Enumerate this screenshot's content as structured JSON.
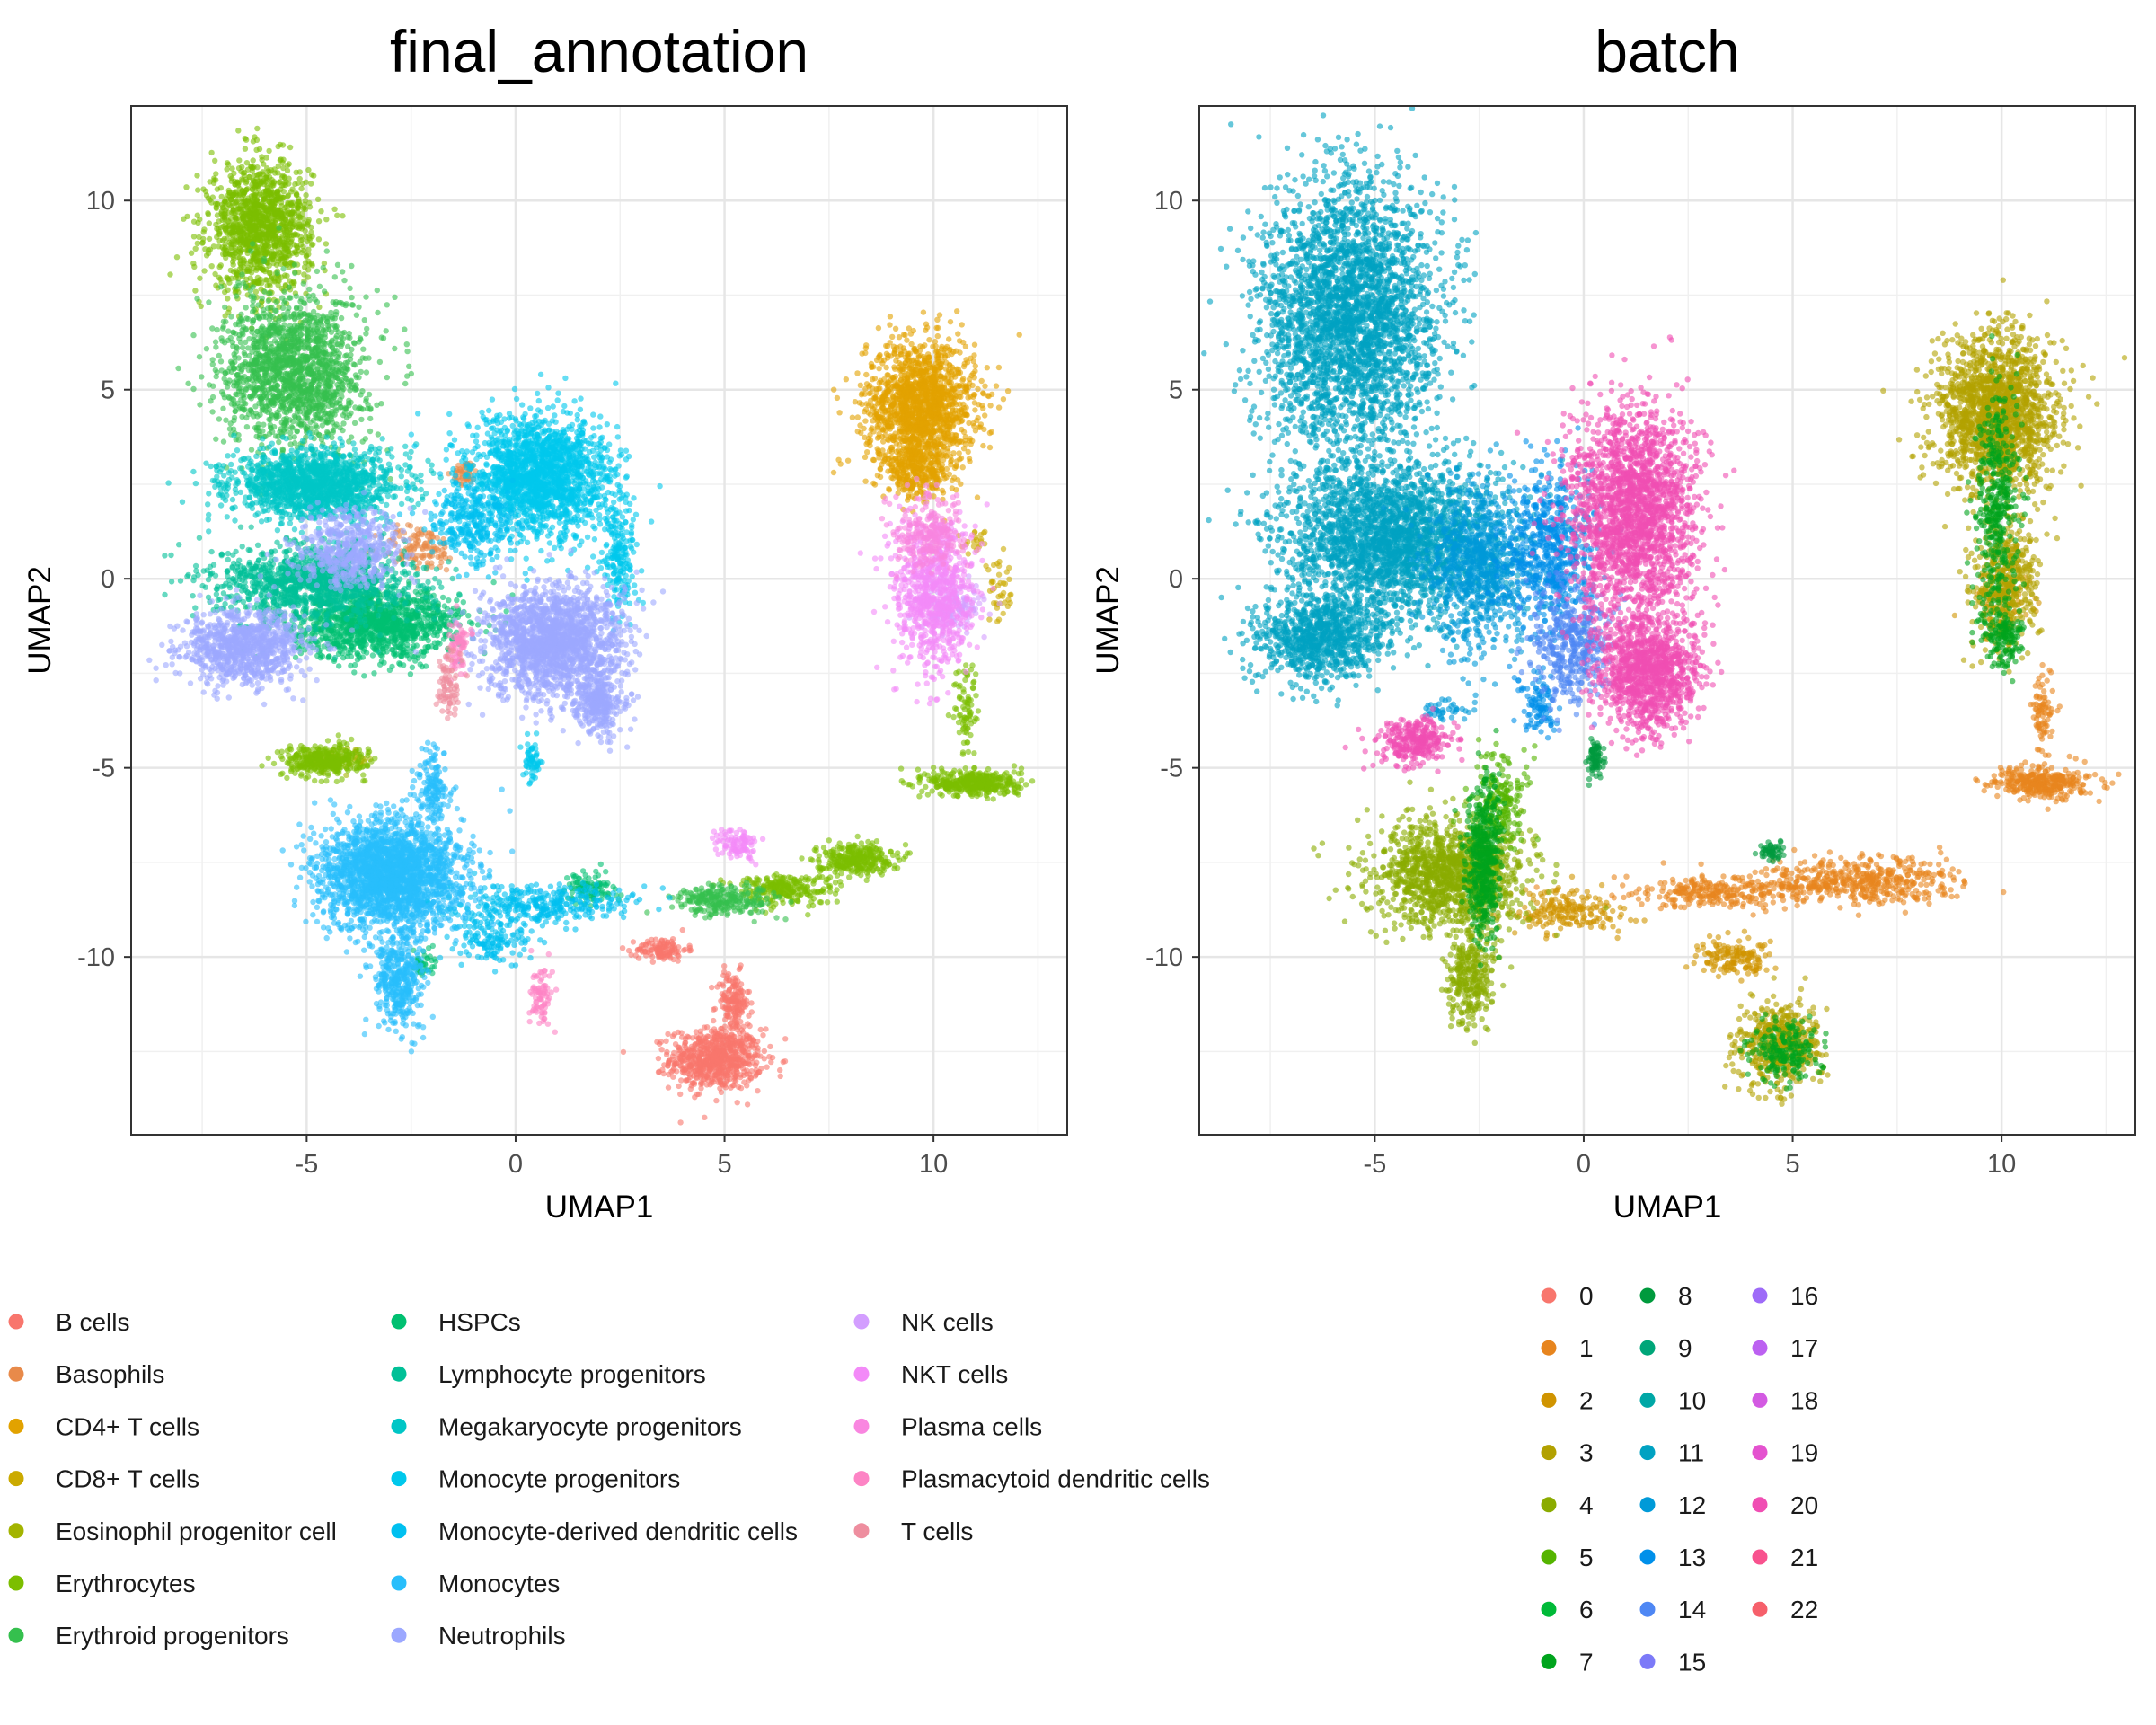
{
  "chart_data": [
    {
      "type": "scatter",
      "title": "final_annotation",
      "xlabel": "UMAP1",
      "ylabel": "UMAP2",
      "xlim": [
        -9.2,
        13.2
      ],
      "ylim": [
        -14.7,
        12.5
      ],
      "x_ticks": [
        -5,
        0,
        5,
        10
      ],
      "y_ticks": [
        10,
        5,
        0,
        -5,
        -10
      ],
      "grid": true,
      "legend_position": "bottom",
      "series": [
        {
          "name": "B cells",
          "color": "#F8766D",
          "clusters": [
            {
              "x": 4.8,
              "y": -12.7,
              "rx": 1.1,
              "ry": 0.8,
              "n": 700
            },
            {
              "x": 5.2,
              "y": -11.2,
              "rx": 0.4,
              "ry": 0.8,
              "n": 160
            },
            {
              "x": 3.5,
              "y": -9.8,
              "rx": 0.6,
              "ry": 0.3,
              "n": 120
            }
          ]
        },
        {
          "name": "Basophils",
          "color": "#E88A4A",
          "clusters": [
            {
              "x": -2.3,
              "y": 0.8,
              "rx": 0.9,
              "ry": 0.6,
              "n": 120
            },
            {
              "x": -1.2,
              "y": 2.8,
              "rx": 0.3,
              "ry": 0.3,
              "n": 50
            }
          ]
        },
        {
          "name": "CD4+ T cells",
          "color": "#E2A200",
          "clusters": [
            {
              "x": 9.7,
              "y": 4.6,
              "rx": 1.3,
              "ry": 1.7,
              "n": 1500
            },
            {
              "x": 9.6,
              "y": 2.9,
              "rx": 0.8,
              "ry": 0.8,
              "n": 300
            }
          ]
        },
        {
          "name": "CD8+ T cells",
          "color": "#CBAA00",
          "clusters": [
            {
              "x": 11.6,
              "y": -0.4,
              "rx": 0.4,
              "ry": 0.8,
              "n": 40
            },
            {
              "x": 11.0,
              "y": 1.0,
              "rx": 0.3,
              "ry": 0.3,
              "n": 20
            }
          ]
        },
        {
          "name": "Eosinophil progenitor cell",
          "color": "#A3B400",
          "clusters": [
            {
              "x": -4.2,
              "y": -4.8,
              "rx": 0.8,
              "ry": 0.3,
              "n": 60
            }
          ]
        },
        {
          "name": "Erythrocytes",
          "color": "#7CBE00",
          "clusters": [
            {
              "x": -6.1,
              "y": 9.3,
              "rx": 1.2,
              "ry": 1.7,
              "n": 1300
            },
            {
              "x": -4.6,
              "y": -4.8,
              "rx": 1.0,
              "ry": 0.4,
              "n": 350
            },
            {
              "x": 11.0,
              "y": -5.4,
              "rx": 1.1,
              "ry": 0.35,
              "n": 400
            },
            {
              "x": 8.1,
              "y": -7.4,
              "rx": 0.9,
              "ry": 0.4,
              "n": 300
            },
            {
              "x": 6.4,
              "y": -8.2,
              "rx": 1.2,
              "ry": 0.4,
              "n": 250
            },
            {
              "x": 10.8,
              "y": -3.5,
              "rx": 0.3,
              "ry": 1.2,
              "n": 80
            }
          ]
        },
        {
          "name": "Erythroid progenitors",
          "color": "#35C04E",
          "clusters": [
            {
              "x": -5.3,
              "y": 5.5,
              "rx": 1.7,
              "ry": 2.0,
              "n": 1600
            },
            {
              "x": 5.0,
              "y": -8.5,
              "rx": 1.2,
              "ry": 0.4,
              "n": 250
            }
          ]
        },
        {
          "name": "HSPCs",
          "color": "#00C071",
          "clusters": [
            {
              "x": -3.3,
              "y": -1.2,
              "rx": 2.0,
              "ry": 0.9,
              "n": 1200
            },
            {
              "x": 1.8,
              "y": -8.2,
              "rx": 0.6,
              "ry": 0.4,
              "n": 100
            },
            {
              "x": -2.2,
              "y": -10.2,
              "rx": 0.3,
              "ry": 0.5,
              "n": 40
            }
          ]
        },
        {
          "name": "Lymphocyte progenitors",
          "color": "#00C097",
          "clusters": [
            {
              "x": -4.8,
              "y": -0.1,
              "rx": 2.3,
              "ry": 1.0,
              "n": 1200
            }
          ]
        },
        {
          "name": "Megakaryocyte progenitors",
          "color": "#00C6C6",
          "clusters": [
            {
              "x": -4.8,
              "y": 2.5,
              "rx": 2.0,
              "ry": 0.9,
              "n": 1500
            }
          ]
        },
        {
          "name": "Monocyte progenitors",
          "color": "#00C8EC",
          "clusters": [
            {
              "x": 0.6,
              "y": 2.7,
              "rx": 1.7,
              "ry": 1.6,
              "n": 1800
            },
            {
              "x": 2.5,
              "y": 0.5,
              "rx": 0.4,
              "ry": 1.6,
              "n": 200
            },
            {
              "x": 0.4,
              "y": -4.8,
              "rx": 0.2,
              "ry": 0.5,
              "n": 60
            }
          ]
        },
        {
          "name": "Monocyte-derived dendritic cells",
          "color": "#00C0F0",
          "clusters": [
            {
              "x": -1.0,
              "y": 1.5,
              "rx": 1.0,
              "ry": 1.0,
              "n": 300
            },
            {
              "x": 0.5,
              "y": -8.6,
              "rx": 2.3,
              "ry": 0.5,
              "n": 350
            },
            {
              "x": -0.6,
              "y": -9.5,
              "rx": 0.9,
              "ry": 0.7,
              "n": 150
            }
          ]
        },
        {
          "name": "Monocytes",
          "color": "#28BEFB",
          "clusters": [
            {
              "x": -3.0,
              "y": -7.8,
              "rx": 1.7,
              "ry": 1.4,
              "n": 2200
            },
            {
              "x": -2.8,
              "y": -10.5,
              "rx": 0.6,
              "ry": 1.4,
              "n": 400
            },
            {
              "x": -2.0,
              "y": -5.6,
              "rx": 0.4,
              "ry": 1.1,
              "n": 150
            }
          ]
        },
        {
          "name": "Neutrophils",
          "color": "#9CA8FF",
          "clusters": [
            {
              "x": 0.9,
              "y": -1.7,
              "rx": 1.6,
              "ry": 1.5,
              "n": 1800
            },
            {
              "x": -6.5,
              "y": -1.8,
              "rx": 1.4,
              "ry": 1.0,
              "n": 900
            },
            {
              "x": -4.0,
              "y": 0.8,
              "rx": 1.3,
              "ry": 1.0,
              "n": 500
            },
            {
              "x": 2.0,
              "y": -3.3,
              "rx": 0.6,
              "ry": 0.8,
              "n": 300
            }
          ]
        },
        {
          "name": "NK cells",
          "color": "#D39EFF",
          "clusters": [
            {
              "x": 10.5,
              "y": -0.8,
              "rx": 0.8,
              "ry": 0.7,
              "n": 150
            }
          ]
        },
        {
          "name": "NKT cells",
          "color": "#F38AF8",
          "clusters": [
            {
              "x": 10.0,
              "y": -0.4,
              "rx": 0.9,
              "ry": 1.9,
              "n": 800
            },
            {
              "x": 5.3,
              "y": -7.0,
              "rx": 0.5,
              "ry": 0.4,
              "n": 100
            }
          ]
        },
        {
          "name": "Plasma cells",
          "color": "#F986E0",
          "clusters": [
            {
              "x": 9.9,
              "y": 1.2,
              "rx": 0.8,
              "ry": 0.9,
              "n": 250
            }
          ]
        },
        {
          "name": "Plasmacytoid dendritic cells",
          "color": "#FD84C5",
          "clusters": [
            {
              "x": 0.6,
              "y": -11.0,
              "rx": 0.25,
              "ry": 0.8,
              "n": 80
            },
            {
              "x": -1.4,
              "y": -1.9,
              "rx": 0.3,
              "ry": 0.8,
              "n": 70
            }
          ]
        },
        {
          "name": "T cells",
          "color": "#EE8E9F",
          "clusters": [
            {
              "x": -1.6,
              "y": -2.8,
              "rx": 0.3,
              "ry": 0.9,
              "n": 80
            }
          ]
        }
      ]
    },
    {
      "type": "scatter",
      "title": "batch",
      "xlabel": "UMAP1",
      "ylabel": "UMAP2",
      "xlim": [
        -9.2,
        13.2
      ],
      "ylim": [
        -14.7,
        12.5
      ],
      "x_ticks": [
        -5,
        0,
        5,
        10
      ],
      "y_ticks": [
        10,
        5,
        0,
        -5,
        -10
      ],
      "grid": true,
      "legend_position": "bottom",
      "series": [
        {
          "name": "0",
          "color": "#F8766D",
          "clusters": []
        },
        {
          "name": "1",
          "color": "#E7851E",
          "clusters": [
            {
              "x": 6.5,
              "y": -8.0,
              "rx": 2.5,
              "ry": 0.6,
              "n": 500
            },
            {
              "x": 11.0,
              "y": -5.4,
              "rx": 1.1,
              "ry": 0.4,
              "n": 350
            },
            {
              "x": 3.0,
              "y": -8.3,
              "rx": 2.0,
              "ry": 0.4,
              "n": 250
            },
            {
              "x": 11.0,
              "y": -3.5,
              "rx": 0.3,
              "ry": 1.2,
              "n": 80
            }
          ]
        },
        {
          "name": "2",
          "color": "#D09400",
          "clusters": [
            {
              "x": 3.6,
              "y": -10.0,
              "rx": 0.8,
              "ry": 0.6,
              "n": 150
            },
            {
              "x": -0.4,
              "y": -8.8,
              "rx": 1.2,
              "ry": 0.6,
              "n": 200
            },
            {
              "x": 10.0,
              "y": -0.5,
              "rx": 0.6,
              "ry": 1.0,
              "n": 120
            }
          ]
        },
        {
          "name": "3",
          "color": "#B2A100",
          "clusters": [
            {
              "x": 9.9,
              "y": 4.3,
              "rx": 1.4,
              "ry": 2.0,
              "n": 1700
            },
            {
              "x": 4.7,
              "y": -12.3,
              "rx": 1.0,
              "ry": 1.1,
              "n": 500
            },
            {
              "x": 10.1,
              "y": 0.0,
              "rx": 0.8,
              "ry": 1.8,
              "n": 400
            }
          ]
        },
        {
          "name": "4",
          "color": "#8BAB00",
          "clusters": [
            {
              "x": -3.2,
              "y": -7.8,
              "rx": 1.8,
              "ry": 1.4,
              "n": 1300
            },
            {
              "x": -2.7,
              "y": -10.5,
              "rx": 0.6,
              "ry": 1.3,
              "n": 300
            }
          ]
        },
        {
          "name": "5",
          "color": "#55B400",
          "clusters": [
            {
              "x": -2.0,
              "y": -6.0,
              "rx": 0.7,
              "ry": 1.2,
              "n": 200
            }
          ]
        },
        {
          "name": "6",
          "color": "#00BA38",
          "clusters": []
        },
        {
          "name": "7",
          "color": "#00A41D",
          "clusters": [
            {
              "x": -2.4,
              "y": -7.5,
              "rx": 0.4,
              "ry": 2.0,
              "n": 500
            },
            {
              "x": 9.9,
              "y": 2.0,
              "rx": 0.5,
              "ry": 3.0,
              "n": 400
            },
            {
              "x": 4.8,
              "y": -12.5,
              "rx": 0.8,
              "ry": 0.8,
              "n": 200
            },
            {
              "x": 10.0,
              "y": -1.5,
              "rx": 0.5,
              "ry": 0.8,
              "n": 150
            }
          ]
        },
        {
          "name": "8",
          "color": "#009A3D",
          "clusters": [
            {
              "x": 0.3,
              "y": -4.8,
              "rx": 0.2,
              "ry": 0.5,
              "n": 80
            },
            {
              "x": 4.5,
              "y": -7.2,
              "rx": 0.3,
              "ry": 0.25,
              "n": 50
            }
          ]
        },
        {
          "name": "9",
          "color": "#00A679",
          "clusters": []
        },
        {
          "name": "10",
          "color": "#00A7A6",
          "clusters": []
        },
        {
          "name": "11",
          "color": "#00A2C2",
          "clusters": [
            {
              "x": -5.6,
              "y": 7.0,
              "rx": 2.1,
              "ry": 3.5,
              "n": 3000
            },
            {
              "x": -4.6,
              "y": 1.0,
              "rx": 2.6,
              "ry": 2.0,
              "n": 2500
            },
            {
              "x": -6.3,
              "y": -1.6,
              "rx": 1.6,
              "ry": 1.1,
              "n": 900
            }
          ]
        },
        {
          "name": "12",
          "color": "#009AD8",
          "clusters": [
            {
              "x": -2.5,
              "y": 0.3,
              "rx": 1.2,
              "ry": 2.2,
              "n": 800
            },
            {
              "x": -3.3,
              "y": -3.5,
              "rx": 0.5,
              "ry": 0.3,
              "n": 40
            }
          ]
        },
        {
          "name": "13",
          "color": "#0090EA",
          "clusters": [
            {
              "x": -0.8,
              "y": 0.8,
              "rx": 1.0,
              "ry": 2.0,
              "n": 600
            },
            {
              "x": -1.1,
              "y": -3.3,
              "rx": 0.4,
              "ry": 0.8,
              "n": 100
            }
          ]
        },
        {
          "name": "14",
          "color": "#4E87F4",
          "clusters": [
            {
              "x": -0.3,
              "y": -1.8,
              "rx": 0.9,
              "ry": 1.6,
              "n": 400
            }
          ]
        },
        {
          "name": "15",
          "color": "#7C7AF8",
          "clusters": []
        },
        {
          "name": "16",
          "color": "#9E6BF8",
          "clusters": []
        },
        {
          "name": "17",
          "color": "#BC61F1",
          "clusters": []
        },
        {
          "name": "18",
          "color": "#D35AE2",
          "clusters": []
        },
        {
          "name": "19",
          "color": "#E452CF",
          "clusters": []
        },
        {
          "name": "20",
          "color": "#F04EB3",
          "clusters": [
            {
              "x": 1.2,
              "y": 1.7,
              "rx": 1.5,
              "ry": 2.8,
              "n": 2000
            },
            {
              "x": 1.5,
              "y": -2.5,
              "rx": 1.2,
              "ry": 1.5,
              "n": 1100
            },
            {
              "x": -4.0,
              "y": -4.3,
              "rx": 0.9,
              "ry": 0.6,
              "n": 300
            }
          ]
        },
        {
          "name": "21",
          "color": "#F8528E",
          "clusters": []
        },
        {
          "name": "22",
          "color": "#F6606B",
          "clusters": []
        }
      ]
    }
  ]
}
